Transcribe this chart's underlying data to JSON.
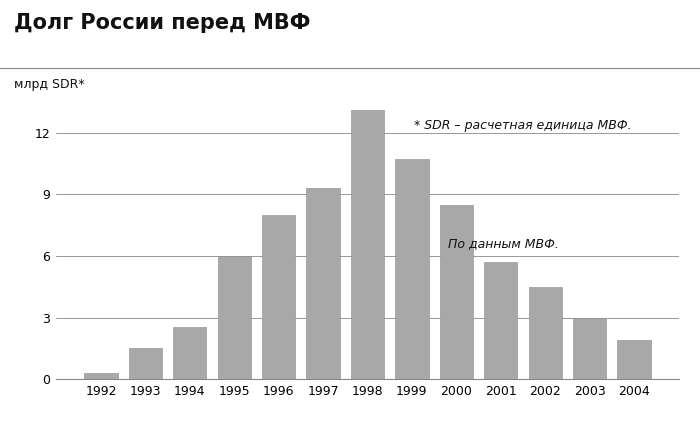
{
  "title": "Долг России перед МВФ",
  "ylabel": "млрд SDR*",
  "years": [
    1992,
    1993,
    1994,
    1995,
    1996,
    1997,
    1998,
    1999,
    2000,
    2001,
    2002,
    2003,
    2004
  ],
  "values": [
    0.3,
    1.5,
    2.55,
    6.0,
    8.0,
    9.3,
    13.1,
    10.7,
    8.5,
    5.7,
    4.5,
    3.0,
    1.9
  ],
  "bar_color": "#a8a8a8",
  "bar_edge_color": "#888888",
  "ylim": [
    0,
    14
  ],
  "yticks": [
    0,
    3,
    6,
    9,
    12
  ],
  "annotation1": "* SDR – расчетная единица МВФ.",
  "annotation2": "По данным МВФ.",
  "background_color": "#ffffff",
  "title_fontsize": 15,
  "ylabel_fontsize": 9,
  "tick_fontsize": 9,
  "annotation_fontsize": 9
}
